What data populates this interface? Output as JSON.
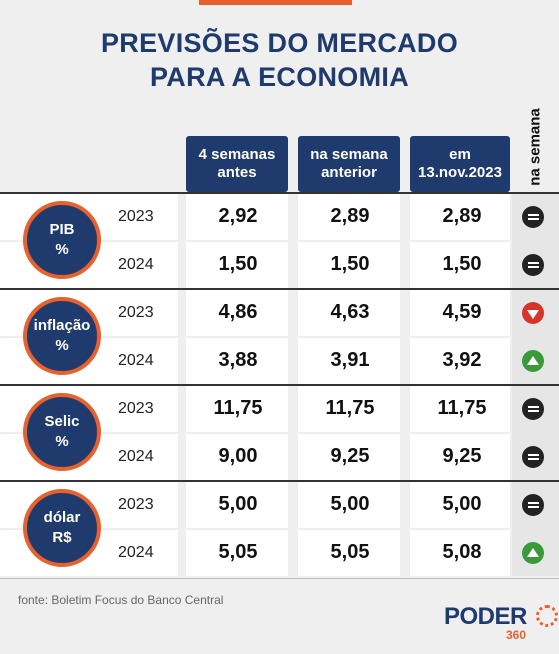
{
  "title_line1": "PREVISÕES DO MERCADO",
  "title_line2": "PARA A ECONOMIA",
  "columns": {
    "c1_line1": "4 semanas",
    "c1_line2": "antes",
    "c2_line1": "na semana",
    "c2_line2": "anterior",
    "c3_line1": "em",
    "c3_line2": "13.nov.2023",
    "c4": "na semana"
  },
  "rows": [
    {
      "label1": "PIB",
      "label2": "%",
      "y1": "2023",
      "y2": "2024",
      "r1": [
        "2,92",
        "2,89",
        "2,89"
      ],
      "r1_trend": "equal",
      "r2": [
        "1,50",
        "1,50",
        "1,50"
      ],
      "r2_trend": "equal"
    },
    {
      "label1": "inflação",
      "label2": "%",
      "y1": "2023",
      "y2": "2024",
      "r1": [
        "4,86",
        "4,63",
        "4,59"
      ],
      "r1_trend": "down",
      "r2": [
        "3,88",
        "3,91",
        "3,92"
      ],
      "r2_trend": "up"
    },
    {
      "label1": "Selic",
      "label2": "%",
      "y1": "2023",
      "y2": "2024",
      "r1": [
        "11,75",
        "11,75",
        "11,75"
      ],
      "r1_trend": "equal",
      "r2": [
        "9,00",
        "9,25",
        "9,25"
      ],
      "r2_trend": "equal"
    },
    {
      "label1": "dólar",
      "label2": "R$",
      "y1": "2023",
      "y2": "2024",
      "r1": [
        "5,00",
        "5,00",
        "5,00"
      ],
      "r1_trend": "equal",
      "r2": [
        "5,05",
        "5,05",
        "5,08"
      ],
      "r2_trend": "up"
    }
  ],
  "source": "fonte: Boletim Focus do Banco Central",
  "logo": {
    "word": "PODER",
    "num": "360"
  },
  "colors": {
    "navy": "#1f3a6d",
    "orange": "#e8602c",
    "red": "#d9342b",
    "green": "#3a9a3a"
  }
}
